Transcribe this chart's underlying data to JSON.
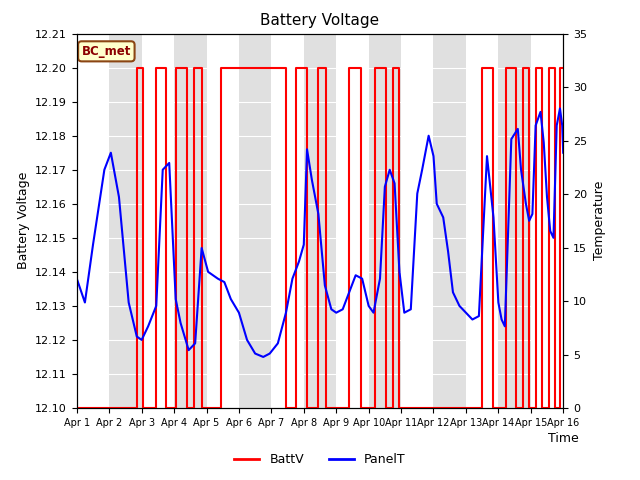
{
  "title": "Battery Voltage",
  "ylabel_left": "Battery Voltage",
  "ylabel_right": "Temperature",
  "xlabel": "Time",
  "ylim_left": [
    12.1,
    12.21
  ],
  "ylim_right": [
    0,
    35
  ],
  "yticks_left": [
    12.1,
    12.11,
    12.12,
    12.13,
    12.14,
    12.15,
    12.16,
    12.17,
    12.18,
    12.19,
    12.2,
    12.21
  ],
  "yticks_right": [
    0,
    5,
    10,
    15,
    20,
    25,
    30,
    35
  ],
  "xtick_labels": [
    "Apr 1",
    "Apr 2",
    "Apr 3",
    "Apr 4",
    "Apr 5",
    "Apr 6",
    "Apr 7",
    "Apr 8",
    "Apr 9",
    "Apr 10",
    "Apr 11",
    "Apr 12",
    "Apr 13",
    "Apr 14",
    "Apr 15",
    "Apr 16"
  ],
  "label_box_text": "BC_met",
  "label_box_facecolor": "#ffffcc",
  "label_box_edgecolor": "#8B4513",
  "label_box_textcolor": "#8B0000",
  "batt_color": "red",
  "panel_color": "blue",
  "background_color": "white",
  "band_color": "#e0e0e0",
  "batt_label": "BattV",
  "panel_label": "PanelT",
  "batt_data": [
    [
      0,
      12.1
    ],
    [
      1.85,
      12.1
    ],
    [
      1.85,
      12.2
    ],
    [
      2.05,
      12.2
    ],
    [
      2.05,
      12.1
    ],
    [
      2.45,
      12.1
    ],
    [
      2.45,
      12.2
    ],
    [
      2.75,
      12.2
    ],
    [
      2.75,
      12.1
    ],
    [
      3.05,
      12.1
    ],
    [
      3.05,
      12.2
    ],
    [
      3.4,
      12.2
    ],
    [
      3.4,
      12.1
    ],
    [
      3.6,
      12.1
    ],
    [
      3.6,
      12.2
    ],
    [
      3.85,
      12.2
    ],
    [
      3.85,
      12.1
    ],
    [
      4.45,
      12.1
    ],
    [
      4.45,
      12.2
    ],
    [
      6.45,
      12.2
    ],
    [
      6.45,
      12.1
    ],
    [
      6.75,
      12.1
    ],
    [
      6.75,
      12.2
    ],
    [
      7.1,
      12.2
    ],
    [
      7.1,
      12.1
    ],
    [
      7.45,
      12.1
    ],
    [
      7.45,
      12.2
    ],
    [
      7.7,
      12.2
    ],
    [
      7.7,
      12.1
    ],
    [
      8.4,
      12.1
    ],
    [
      8.4,
      12.2
    ],
    [
      8.75,
      12.2
    ],
    [
      8.75,
      12.1
    ],
    [
      9.2,
      12.1
    ],
    [
      9.2,
      12.2
    ],
    [
      9.55,
      12.2
    ],
    [
      9.55,
      12.1
    ],
    [
      9.75,
      12.1
    ],
    [
      9.75,
      12.2
    ],
    [
      9.95,
      12.2
    ],
    [
      9.95,
      12.1
    ],
    [
      12.5,
      12.1
    ],
    [
      12.5,
      12.2
    ],
    [
      12.85,
      12.2
    ],
    [
      12.85,
      12.1
    ],
    [
      13.25,
      12.1
    ],
    [
      13.25,
      12.2
    ],
    [
      13.55,
      12.2
    ],
    [
      13.55,
      12.1
    ],
    [
      13.75,
      12.1
    ],
    [
      13.75,
      12.2
    ],
    [
      13.95,
      12.2
    ],
    [
      13.95,
      12.1
    ],
    [
      14.15,
      12.1
    ],
    [
      14.15,
      12.2
    ],
    [
      14.35,
      12.2
    ],
    [
      14.35,
      12.1
    ],
    [
      14.55,
      12.1
    ],
    [
      14.55,
      12.2
    ],
    [
      14.75,
      12.2
    ],
    [
      14.75,
      12.1
    ],
    [
      14.9,
      12.1
    ],
    [
      14.9,
      12.2
    ],
    [
      15.0,
      12.2
    ]
  ],
  "panel_data": [
    [
      0.0,
      12.138
    ],
    [
      0.25,
      12.131
    ],
    [
      0.5,
      12.148
    ],
    [
      0.85,
      12.17
    ],
    [
      1.05,
      12.175
    ],
    [
      1.3,
      12.162
    ],
    [
      1.6,
      12.131
    ],
    [
      1.85,
      12.121
    ],
    [
      2.0,
      12.12
    ],
    [
      2.2,
      12.124
    ],
    [
      2.45,
      12.13
    ],
    [
      2.65,
      12.17
    ],
    [
      2.85,
      12.172
    ],
    [
      3.05,
      12.132
    ],
    [
      3.2,
      12.125
    ],
    [
      3.45,
      12.117
    ],
    [
      3.65,
      12.119
    ],
    [
      3.85,
      12.147
    ],
    [
      4.05,
      12.14
    ],
    [
      4.2,
      12.139
    ],
    [
      4.35,
      12.138
    ],
    [
      4.55,
      12.137
    ],
    [
      4.75,
      12.132
    ],
    [
      5.0,
      12.128
    ],
    [
      5.25,
      12.12
    ],
    [
      5.5,
      12.116
    ],
    [
      5.75,
      12.115
    ],
    [
      5.95,
      12.116
    ],
    [
      6.2,
      12.119
    ],
    [
      6.45,
      12.128
    ],
    [
      6.65,
      12.138
    ],
    [
      6.85,
      12.143
    ],
    [
      7.0,
      12.148
    ],
    [
      7.1,
      12.176
    ],
    [
      7.25,
      12.167
    ],
    [
      7.45,
      12.157
    ],
    [
      7.65,
      12.136
    ],
    [
      7.85,
      12.129
    ],
    [
      8.0,
      12.128
    ],
    [
      8.2,
      12.129
    ],
    [
      8.4,
      12.134
    ],
    [
      8.6,
      12.139
    ],
    [
      8.8,
      12.138
    ],
    [
      9.0,
      12.13
    ],
    [
      9.15,
      12.128
    ],
    [
      9.35,
      12.138
    ],
    [
      9.5,
      12.165
    ],
    [
      9.65,
      12.17
    ],
    [
      9.8,
      12.166
    ],
    [
      9.95,
      12.14
    ],
    [
      10.1,
      12.128
    ],
    [
      10.3,
      12.129
    ],
    [
      10.5,
      12.163
    ],
    [
      10.65,
      12.17
    ],
    [
      10.85,
      12.18
    ],
    [
      11.0,
      12.174
    ],
    [
      11.1,
      12.16
    ],
    [
      11.3,
      12.156
    ],
    [
      11.45,
      12.146
    ],
    [
      11.6,
      12.134
    ],
    [
      11.8,
      12.13
    ],
    [
      12.0,
      12.128
    ],
    [
      12.2,
      12.126
    ],
    [
      12.4,
      12.127
    ],
    [
      12.65,
      12.174
    ],
    [
      12.85,
      12.156
    ],
    [
      13.0,
      12.131
    ],
    [
      13.1,
      12.126
    ],
    [
      13.2,
      12.124
    ],
    [
      13.4,
      12.179
    ],
    [
      13.6,
      12.182
    ],
    [
      13.7,
      12.17
    ],
    [
      13.85,
      12.16
    ],
    [
      13.95,
      12.155
    ],
    [
      14.05,
      12.157
    ],
    [
      14.15,
      12.183
    ],
    [
      14.3,
      12.187
    ],
    [
      14.4,
      12.178
    ],
    [
      14.5,
      12.162
    ],
    [
      14.6,
      12.152
    ],
    [
      14.7,
      12.15
    ],
    [
      14.8,
      12.183
    ],
    [
      14.9,
      12.188
    ],
    [
      14.97,
      12.183
    ],
    [
      15.0,
      12.175
    ]
  ],
  "band_ranges": [
    [
      1,
      2
    ],
    [
      3,
      4
    ],
    [
      5,
      6
    ],
    [
      7,
      8
    ],
    [
      9,
      10
    ],
    [
      11,
      12
    ],
    [
      13,
      14
    ]
  ]
}
